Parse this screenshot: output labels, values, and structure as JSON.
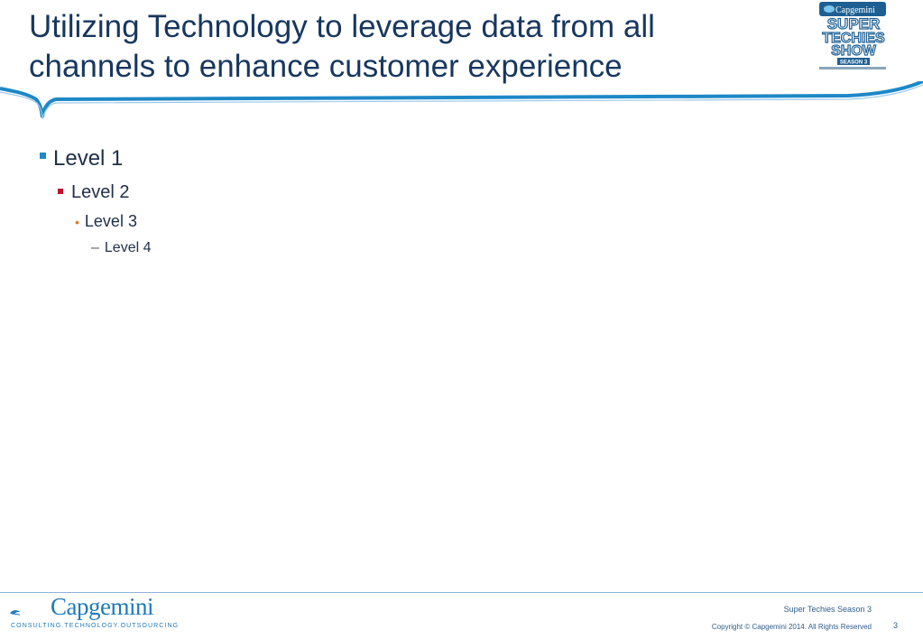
{
  "slide": {
    "title_lines": [
      "Utilizing Technology to leverage data from all",
      "channels to enhance customer experience"
    ],
    "badge": {
      "brand": "Capgemini",
      "line1": "SUPER",
      "line2": "TECHIES",
      "line3": "SHOW",
      "season": "SEASON 3"
    },
    "bullets": {
      "level1": "Level 1",
      "level2": "Level 2",
      "level3": "Level 3",
      "level4": "Level 4",
      "level4_marker": "–"
    }
  },
  "footer": {
    "logo_name": "Capgemini",
    "logo_tagline": "CONSULTING.TECHNOLOGY.OUTSOURCING",
    "show_name": "Super Techies Season 3",
    "copyright": "Copyright © Capgemini 2014. All Rights Reserved",
    "page_number": "3"
  },
  "colors": {
    "title": "#17375e",
    "accent_blue": "#1e88c7",
    "bullet_red": "#c0122c",
    "bullet_orange": "#e07b22"
  }
}
